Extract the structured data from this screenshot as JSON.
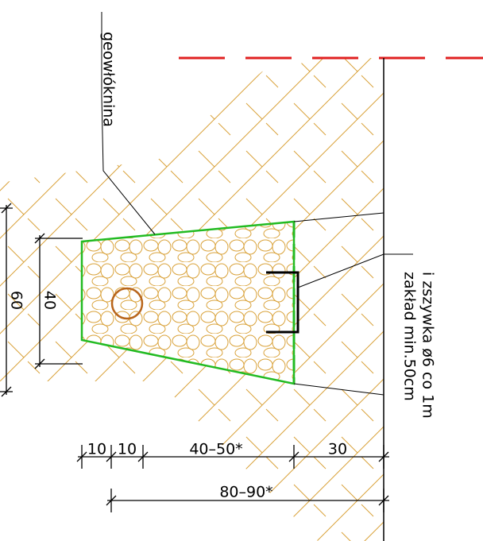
{
  "labels": {
    "geotextile": "geowłóknina",
    "note_line1": "zakład min.50cm",
    "note_line2": "i zszywka ø6 co 1m"
  },
  "dimensions": {
    "vertical": [
      "60",
      "40"
    ],
    "horizontal": [
      "10",
      "10",
      "40–50*",
      "30"
    ],
    "total": "80–90*"
  }
}
